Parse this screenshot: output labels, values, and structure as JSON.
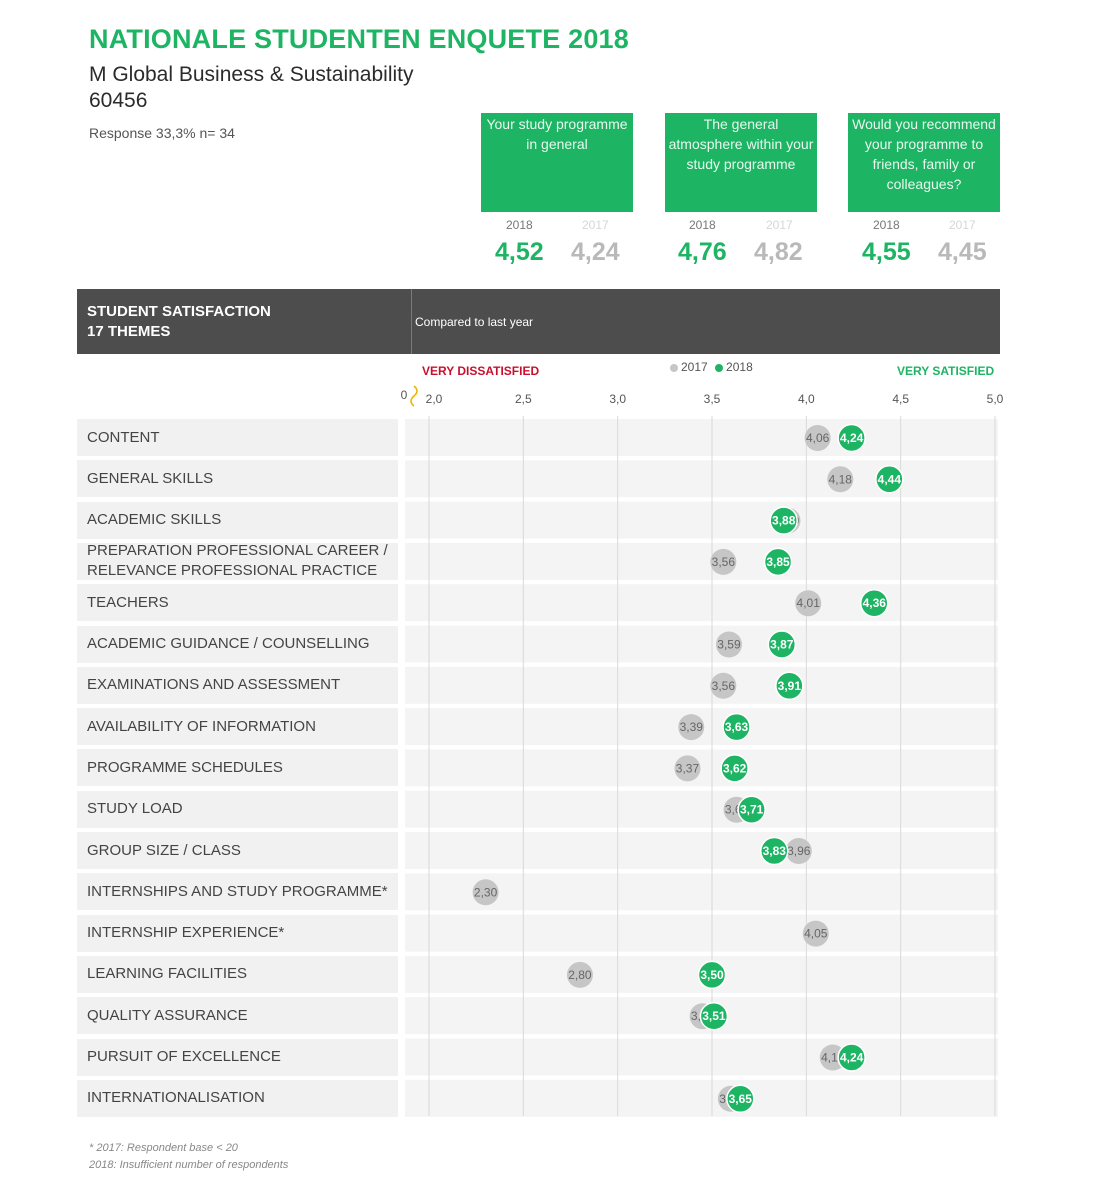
{
  "header": {
    "title": "NATIONALE STUDENTEN ENQUETE 2018",
    "programme": "M Global Business & Sustainability",
    "code": "60456",
    "response": "Response 33,3%  n= 34"
  },
  "kpis": [
    {
      "label": "Your study programme in general",
      "year_current": "2018",
      "year_previous": "2017",
      "value_current": "4,52",
      "value_previous": "4,24"
    },
    {
      "label": "The general atmosphere within your study programme",
      "year_current": "2018",
      "year_previous": "2017",
      "value_current": "4,76",
      "value_previous": "4,82"
    },
    {
      "label": "Would you recommend your programme to friends, family or colleagues?",
      "year_current": "2018",
      "year_previous": "2017",
      "value_current": "4,55",
      "value_previous": "4,45"
    }
  ],
  "satisfaction": {
    "title_line1": "STUDENT SATISFACTION",
    "title_line2": "17 THEMES",
    "compare_label": "Compared to last year",
    "left_label": "VERY DISSATISFIED",
    "right_label": "VERY SATISFIED",
    "legend_2017": "2017",
    "legend_2018": "2018"
  },
  "colors": {
    "green": "#1db464",
    "grey": "#c6c6c6",
    "red": "#c8102e",
    "header_bg": "#4d4d4d"
  },
  "footnote": {
    "line1": "* 2017: Respondent base < 20",
    "line2": "2018: Insufficient number of respondents"
  },
  "chart_data": {
    "type": "scatter",
    "xlim": [
      2.0,
      5.0
    ],
    "axis_break_label": "0",
    "ticks": [
      "2,0",
      "2,5",
      "3,0",
      "3,5",
      "4,0",
      "4,5",
      "5,0"
    ],
    "series": [
      {
        "name": "2017",
        "color": "#c6c6c6"
      },
      {
        "name": "2018",
        "color": "#1db464"
      }
    ],
    "rows": [
      {
        "label": "CONTENT",
        "v2017": 4.06,
        "v2018": 4.24,
        "l2017": "4,06",
        "l2018": "4,24"
      },
      {
        "label": "GENERAL SKILLS",
        "v2017": 4.18,
        "v2018": 4.44,
        "l2017": "4,18",
        "l2018": "4,44"
      },
      {
        "label": "ACADEMIC SKILLS",
        "v2017": 3.9,
        "v2018": 3.88,
        "l2017": "3,90",
        "l2018": "3,88"
      },
      {
        "label": "PREPARATION PROFESSIONAL CAREER / RELEVANCE PROFESSIONAL PRACTICE",
        "v2017": 3.56,
        "v2018": 3.85,
        "l2017": "3,56",
        "l2018": "3,85"
      },
      {
        "label": "TEACHERS",
        "v2017": 4.01,
        "v2018": 4.36,
        "l2017": "4,01",
        "l2018": "4,36"
      },
      {
        "label": "ACADEMIC GUIDANCE / COUNSELLING",
        "v2017": 3.59,
        "v2018": 3.87,
        "l2017": "3,59",
        "l2018": "3,87"
      },
      {
        "label": "EXAMINATIONS AND ASSESSMENT",
        "v2017": 3.56,
        "v2018": 3.91,
        "l2017": "3,56",
        "l2018": "3,91"
      },
      {
        "label": "AVAILABILITY OF INFORMATION",
        "v2017": 3.39,
        "v2018": 3.63,
        "l2017": "3,39",
        "l2018": "3,63"
      },
      {
        "label": "PROGRAMME SCHEDULES",
        "v2017": 3.37,
        "v2018": 3.62,
        "l2017": "3,37",
        "l2018": "3,62"
      },
      {
        "label": "STUDY LOAD",
        "v2017": 3.63,
        "v2018": 3.71,
        "l2017": "3,63",
        "l2018": "3,71"
      },
      {
        "label": "GROUP SIZE / CLASS",
        "v2017": 3.96,
        "v2018": 3.83,
        "l2017": "3,96",
        "l2018": "3,83"
      },
      {
        "label": "INTERNSHIPS AND STUDY PROGRAMME*",
        "v2017": 2.3,
        "v2018": null,
        "l2017": "2,30",
        "l2018": null
      },
      {
        "label": "INTERNSHIP EXPERIENCE*",
        "v2017": 4.05,
        "v2018": null,
        "l2017": "4,05",
        "l2018": null
      },
      {
        "label": "LEARNING FACILITIES",
        "v2017": 2.8,
        "v2018": 3.5,
        "l2017": "2,80",
        "l2018": "3,50"
      },
      {
        "label": "QUALITY ASSURANCE",
        "v2017": 3.45,
        "v2018": 3.51,
        "l2017": "3,45",
        "l2018": "3,51"
      },
      {
        "label": "PURSUIT OF EXCELLENCE",
        "v2017": 4.14,
        "v2018": 4.24,
        "l2017": "4,14",
        "l2018": "4,24"
      },
      {
        "label": "INTERNATIONALISATION",
        "v2017": 3.6,
        "v2018": 3.65,
        "l2017": "3,60",
        "l2018": "3,65"
      }
    ]
  }
}
